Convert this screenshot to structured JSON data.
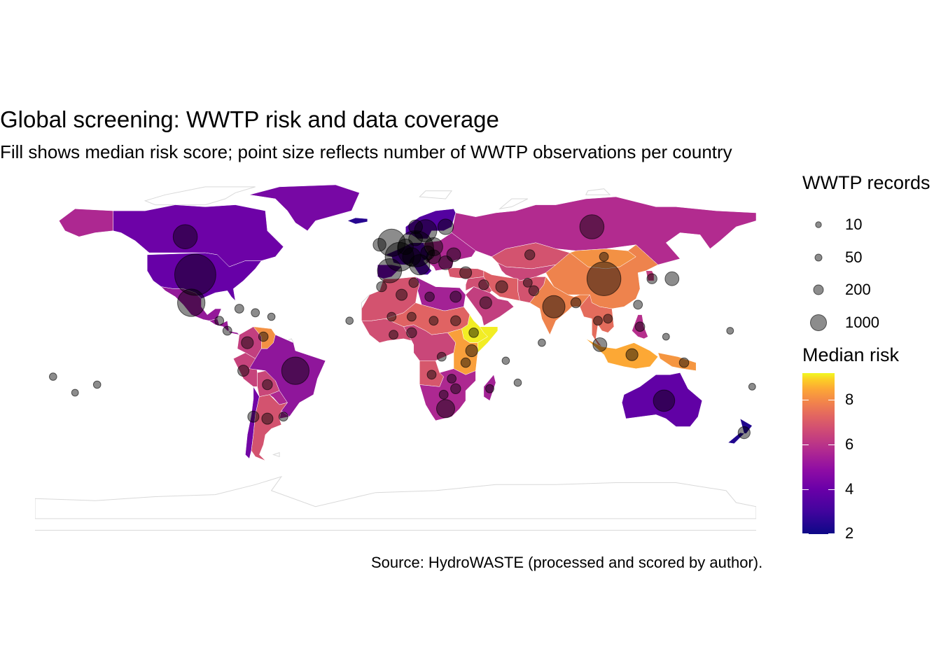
{
  "title": "Global screening: WWTP risk and data coverage",
  "subtitle": "Fill shows median risk score; point size reflects number of WWTP observations per country",
  "caption": "Source: HydroWASTE (processed and scored by author).",
  "legend_size": {
    "title": "WWTP records",
    "entries": [
      {
        "label": "10",
        "records": 10
      },
      {
        "label": "50",
        "records": 50
      },
      {
        "label": "200",
        "records": 200
      },
      {
        "label": "1000",
        "records": 1000
      }
    ]
  },
  "legend_fill": {
    "title": "Median risk",
    "range": [
      2,
      9.2
    ],
    "ticks": [
      {
        "label": "8",
        "value": 8
      },
      {
        "label": "6",
        "value": 6
      },
      {
        "label": "4",
        "value": 4
      },
      {
        "label": "2",
        "value": 2
      }
    ]
  },
  "colors": {
    "point": "#000000",
    "border": "#ffffff",
    "no_data": "#ffffff",
    "scale": [
      "#0d0887",
      "#6a00a8",
      "#b12a90",
      "#e16462",
      "#fca636",
      "#f0f921"
    ]
  },
  "chart_data": {
    "type": "choropleth-bubble",
    "projection": "equirectangular",
    "fill_variable": "median risk score",
    "size_variable": "WWTP records",
    "regions": [
      {
        "name": "Canada",
        "risk": 3.5
      },
      {
        "name": "United States",
        "risk": 3.4
      },
      {
        "name": "Alaska",
        "risk": 4.8
      },
      {
        "name": "Mexico",
        "risk": 4.3
      },
      {
        "name": "Central America",
        "risk": 4.4
      },
      {
        "name": "Colombia",
        "risk": 5.4
      },
      {
        "name": "Venezuela",
        "risk": 7.3
      },
      {
        "name": "Peru",
        "risk": 5.5
      },
      {
        "name": "Brazil",
        "risk": 4.2
      },
      {
        "name": "Bolivia",
        "risk": 5.6
      },
      {
        "name": "Paraguay",
        "risk": 4.8
      },
      {
        "name": "Chile",
        "risk": 3.6
      },
      {
        "name": "Argentina",
        "risk": 5.9
      },
      {
        "name": "Uruguay",
        "risk": 4.5
      },
      {
        "name": "Greenland",
        "risk": 3.7
      },
      {
        "name": "Iceland",
        "risk": 2.4
      },
      {
        "name": "Scandinavia",
        "risk": 3.1
      },
      {
        "name": "Western Europe",
        "risk": 3.0
      },
      {
        "name": "Iberia",
        "risk": 3.4
      },
      {
        "name": "Eastern Europe",
        "risk": 4.8
      },
      {
        "name": "Russia",
        "risk": 4.9
      },
      {
        "name": "Kazakhstan",
        "risk": 5.9
      },
      {
        "name": "Central Asia",
        "risk": 5.6
      },
      {
        "name": "Mongolia",
        "risk": 7.3
      },
      {
        "name": "China",
        "risk": 7.0
      },
      {
        "name": "Turkey",
        "risk": 6.0
      },
      {
        "name": "Middle East",
        "risk": 5.8
      },
      {
        "name": "Arabian Peninsula",
        "risk": 5.4
      },
      {
        "name": "Iran",
        "risk": 6.2
      },
      {
        "name": "Afghanistan / Pakistan",
        "risk": 5.9
      },
      {
        "name": "India",
        "risk": 7.0
      },
      {
        "name": "Southeast Asia",
        "risk": 6.5
      },
      {
        "name": "Japan / Korea",
        "risk": 5.4
      },
      {
        "name": "Philippines",
        "risk": 5.0
      },
      {
        "name": "Indonesia",
        "risk": 7.8
      },
      {
        "name": "Papua New Guinea",
        "risk": 7.4
      },
      {
        "name": "North Africa",
        "risk": 5.9
      },
      {
        "name": "Egypt / Libya",
        "risk": 4.6
      },
      {
        "name": "West Africa",
        "risk": 5.8
      },
      {
        "name": "Sahel",
        "risk": 6.3
      },
      {
        "name": "Ethiopia",
        "risk": 9.0
      },
      {
        "name": "Somalia",
        "risk": 9.0
      },
      {
        "name": "Central Africa",
        "risk": 5.6
      },
      {
        "name": "East Africa",
        "risk": 7.6
      },
      {
        "name": "Angola",
        "risk": 6.0
      },
      {
        "name": "Southern Africa",
        "risk": 4.8
      },
      {
        "name": "Madagascar",
        "risk": 4.6
      },
      {
        "name": "Australia",
        "risk": 3.3
      },
      {
        "name": "New Zealand",
        "risk": 2.3
      }
    ],
    "points": [
      {
        "lon": -100,
        "lat": 38,
        "records": 2000
      },
      {
        "lon": -102,
        "lat": 24,
        "records": 800
      },
      {
        "lon": -105,
        "lat": 57,
        "records": 600
      },
      {
        "lon": -50,
        "lat": -10,
        "records": 800
      },
      {
        "lon": 104,
        "lat": 36,
        "records": 1300
      },
      {
        "lon": 79,
        "lat": 22,
        "records": 500
      },
      {
        "lon": 98,
        "lat": 62,
        "records": 600
      },
      {
        "lon": 134,
        "lat": -25,
        "records": 450
      },
      {
        "lon": -3,
        "lat": 40,
        "records": 600
      },
      {
        "lon": 2,
        "lat": 47,
        "records": 900
      },
      {
        "lon": 10,
        "lat": 51,
        "records": 1500
      },
      {
        "lon": -2,
        "lat": 54,
        "records": 800
      },
      {
        "lon": 15,
        "lat": 60,
        "records": 500
      },
      {
        "lon": 25,
        "lat": 62,
        "records": 200
      },
      {
        "lon": 12,
        "lat": 43,
        "records": 400
      },
      {
        "lon": 19,
        "lat": 52,
        "records": 300
      },
      {
        "lon": 8,
        "lat": 47,
        "records": 300
      },
      {
        "lon": 5,
        "lat": 52,
        "records": 200
      },
      {
        "lon": 19,
        "lat": 47,
        "records": 150
      },
      {
        "lon": 29,
        "lat": 48,
        "records": 150
      },
      {
        "lon": 16,
        "lat": 49,
        "records": 150
      },
      {
        "lon": 25,
        "lat": 44,
        "records": 150
      },
      {
        "lon": -8,
        "lat": 53,
        "records": 120
      },
      {
        "lon": 10,
        "lat": 56,
        "records": 150
      },
      {
        "lon": 10,
        "lat": 62,
        "records": 150
      },
      {
        "lon": 35,
        "lat": 39,
        "records": 100
      },
      {
        "lon": 44,
        "lat": 33,
        "records": 60
      },
      {
        "lon": 53,
        "lat": 32,
        "records": 100
      },
      {
        "lon": 45,
        "lat": 24,
        "records": 100
      },
      {
        "lon": 30,
        "lat": 27,
        "records": 80
      },
      {
        "lon": 3,
        "lat": 28,
        "records": 80
      },
      {
        "lon": -7,
        "lat": 32,
        "records": 60
      },
      {
        "lon": 9,
        "lat": 34,
        "records": 50
      },
      {
        "lon": 17,
        "lat": 27,
        "records": 50
      },
      {
        "lon": 30,
        "lat": 15,
        "records": 60
      },
      {
        "lon": 19,
        "lat": 15,
        "records": 40
      },
      {
        "lon": 8,
        "lat": 17,
        "records": 40
      },
      {
        "lon": -2,
        "lat": 17,
        "records": 40
      },
      {
        "lon": 8,
        "lat": 9,
        "records": 60
      },
      {
        "lon": -1,
        "lat": 8,
        "records": 40
      },
      {
        "lon": 39,
        "lat": 9,
        "records": 50
      },
      {
        "lon": 38,
        "lat": 0,
        "records": 100
      },
      {
        "lon": 35,
        "lat": -6,
        "records": 50
      },
      {
        "lon": 23,
        "lat": -3,
        "records": 40
      },
      {
        "lon": 18,
        "lat": -12,
        "records": 40
      },
      {
        "lon": 28,
        "lat": -14,
        "records": 40
      },
      {
        "lon": 30,
        "lat": -19,
        "records": 60
      },
      {
        "lon": 24,
        "lat": -22,
        "records": 40
      },
      {
        "lon": 25,
        "lat": -29,
        "records": 300
      },
      {
        "lon": 47,
        "lat": -19,
        "records": 30
      },
      {
        "lon": 67,
        "lat": 48,
        "records": 60
      },
      {
        "lon": 69,
        "lat": 30,
        "records": 60
      },
      {
        "lon": 66,
        "lat": 34,
        "records": 40
      },
      {
        "lon": 104,
        "lat": 47,
        "records": 40
      },
      {
        "lon": 128,
        "lat": 36,
        "records": 60
      },
      {
        "lon": 138,
        "lat": 36,
        "records": 150
      },
      {
        "lon": 121,
        "lat": 23,
        "records": 40
      },
      {
        "lon": 122,
        "lat": 12,
        "records": 50
      },
      {
        "lon": 101,
        "lat": 15,
        "records": 40
      },
      {
        "lon": 106,
        "lat": 16,
        "records": 40
      },
      {
        "lon": 102,
        "lat": 3,
        "records": 150
      },
      {
        "lon": 118,
        "lat": -2,
        "records": 100
      },
      {
        "lon": 144,
        "lat": -6,
        "records": 50
      },
      {
        "lon": 90,
        "lat": 24,
        "records": 60
      },
      {
        "lon": 174,
        "lat": -41,
        "records": 100
      },
      {
        "lon": -74,
        "lat": 4,
        "records": 100
      },
      {
        "lon": -66,
        "lat": 7,
        "records": 50
      },
      {
        "lon": -76,
        "lat": -10,
        "records": 80
      },
      {
        "lon": -64,
        "lat": -17,
        "records": 60
      },
      {
        "lon": -71,
        "lat": -33,
        "records": 80
      },
      {
        "lon": -64,
        "lat": -34,
        "records": 80
      },
      {
        "lon": -56,
        "lat": -33,
        "records": 40
      },
      {
        "lon": -88,
        "lat": 15,
        "records": 40
      },
      {
        "lon": -84,
        "lat": 10,
        "records": 40
      },
      {
        "lon": -78,
        "lat": 21,
        "records": 40
      },
      {
        "lon": -70,
        "lat": 19,
        "records": 30
      },
      {
        "lon": -62,
        "lat": 17,
        "records": 20
      },
      {
        "lon": -23,
        "lat": 15,
        "records": 20
      },
      {
        "lon": -149,
        "lat": -17,
        "records": 20
      },
      {
        "lon": -171,
        "lat": -13,
        "records": 20
      },
      {
        "lon": -160,
        "lat": -21,
        "records": 15
      },
      {
        "lon": 73,
        "lat": 4,
        "records": 20
      },
      {
        "lon": 55,
        "lat": -5,
        "records": 20
      },
      {
        "lon": 167,
        "lat": 10,
        "records": 15
      },
      {
        "lon": 178,
        "lat": -18,
        "records": 15
      },
      {
        "lon": 135,
        "lat": 7,
        "records": 15
      },
      {
        "lon": 61,
        "lat": -16,
        "records": 20
      }
    ]
  }
}
